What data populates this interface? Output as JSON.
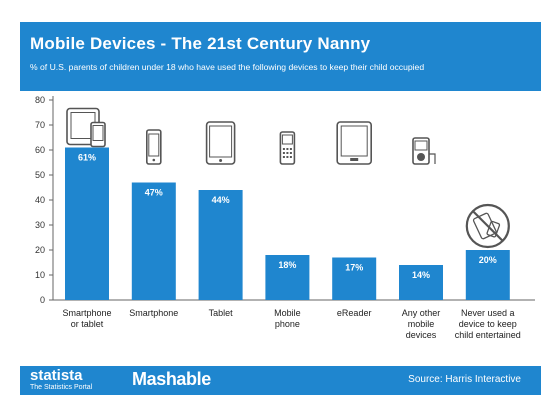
{
  "header": {
    "title": "Mobile Devices - The 21st Century Nanny",
    "subtitle": "% of U.S. parents of children under 18 who have used the following devices to keep their child occupied"
  },
  "footer": {
    "brand": "statista",
    "brand_tagline": "The Statistics Portal",
    "partner": "Mashable",
    "source": "Source: Harris Interactive"
  },
  "colors": {
    "header_bg": "#1f86cf",
    "bar": "#1f86cf",
    "icon": "#555555"
  },
  "chart_data": {
    "type": "bar",
    "title": "Mobile Devices - The 21st Century Nanny",
    "xlabel": "",
    "ylabel": "",
    "ylim": [
      0,
      80
    ],
    "yticks": [
      0,
      10,
      20,
      30,
      40,
      50,
      60,
      70,
      80
    ],
    "grid": false,
    "legend": "none",
    "categories": [
      [
        "Smartphone",
        "or tablet"
      ],
      [
        "Smartphone"
      ],
      [
        "Tablet"
      ],
      [
        "Mobile",
        "phone"
      ],
      [
        "eReader"
      ],
      [
        "Any other",
        "mobile",
        "devices"
      ],
      [
        "Never used a",
        "device to keep",
        "child entertained"
      ]
    ],
    "values": [
      61,
      47,
      44,
      18,
      17,
      14,
      20
    ],
    "value_labels": [
      "61%",
      "47%",
      "44%",
      "18%",
      "17%",
      "14%",
      "20%"
    ],
    "icons": [
      "phone-and-tablet-icon",
      "smartphone-icon",
      "tablet-icon",
      "mobile-phone-icon",
      "ereader-icon",
      "music-player-icon",
      "no-devices-icon"
    ]
  }
}
